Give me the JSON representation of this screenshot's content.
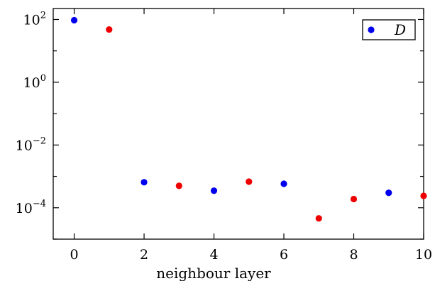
{
  "chart_data": {
    "type": "scatter",
    "title": "",
    "xlabel": "neighbour layer",
    "ylabel": "",
    "xlim": [
      -0.6,
      10
    ],
    "ylim_log10": [
      -5,
      2.35
    ],
    "yscale": "log",
    "x_ticks": [
      0,
      2,
      4,
      6,
      8,
      10
    ],
    "x_tick_labels": [
      "0",
      "2",
      "4",
      "6",
      "8",
      "10"
    ],
    "y_ticks_log10": [
      -4,
      -2,
      0,
      2
    ],
    "y_tick_labels": [
      {
        "base": "10",
        "exp": "−4"
      },
      {
        "base": "10",
        "exp": "−2"
      },
      {
        "base": "10",
        "exp": "0"
      },
      {
        "base": "10",
        "exp": "2"
      }
    ],
    "grid": false,
    "legend": {
      "placement": "top-right",
      "entries": [
        {
          "label": "D",
          "color": "#0000ee"
        }
      ]
    },
    "series": [
      {
        "name": "D",
        "color": "#0000ee",
        "x": [
          0,
          2,
          4,
          6,
          9
        ],
        "y": [
          95,
          0.00065,
          0.00035,
          0.00058,
          0.0003
        ]
      },
      {
        "color": "#ee0000",
        "x": [
          1,
          3,
          5,
          7,
          8,
          10
        ],
        "y": [
          48,
          0.0005,
          0.00068,
          4.6e-05,
          0.00019,
          0.00024
        ]
      }
    ]
  }
}
